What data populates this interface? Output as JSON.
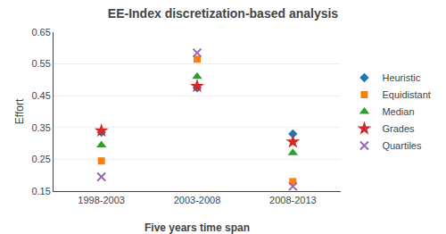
{
  "chart_data": {
    "type": "scatter",
    "title": "EE-Index discretization-based analysis",
    "xlabel": "Five years time span",
    "ylabel": "Effort",
    "categories": [
      "1998-2003",
      "2003-2008",
      "2008-2013"
    ],
    "series": [
      {
        "name": "Heuristic",
        "marker": "diamond",
        "values": [
          0.335,
          0.475,
          0.33
        ]
      },
      {
        "name": "Equidistant",
        "marker": "square",
        "values": [
          0.245,
          0.565,
          0.18
        ]
      },
      {
        "name": "Median",
        "marker": "triangle",
        "values": [
          0.295,
          0.51,
          0.27
        ]
      },
      {
        "name": "Grades",
        "marker": "star",
        "values": [
          0.34,
          0.48,
          0.305
        ]
      },
      {
        "name": "Quartiles",
        "marker": "x",
        "values": [
          0.195,
          0.585,
          0.165
        ]
      }
    ],
    "ylim": [
      0.15,
      0.65
    ],
    "yticks": [
      0.15,
      0.25,
      0.35,
      0.45,
      0.55,
      0.65
    ],
    "grid": "y",
    "legend": "right"
  }
}
